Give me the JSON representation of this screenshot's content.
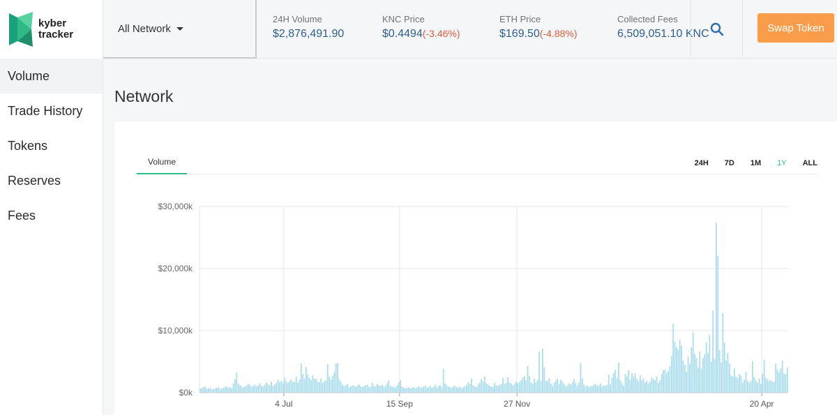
{
  "brand": {
    "line1": "kyber",
    "line2": "tracker",
    "color": "#2eb985"
  },
  "sidebar": {
    "items": [
      {
        "label": "Volume",
        "active": true
      },
      {
        "label": "Trade History"
      },
      {
        "label": "Tokens"
      },
      {
        "label": "Reserves"
      },
      {
        "label": "Fees"
      }
    ]
  },
  "header": {
    "network": "All Network",
    "stats": {
      "volume": {
        "label": "24H Volume",
        "value": "$2,876,491.90"
      },
      "knc": {
        "label": "KNC Price",
        "value": "$0.4494",
        "change": "(-3.46%)"
      },
      "eth": {
        "label": "ETH Price",
        "value": "$169.50",
        "change": "(-4.88%)"
      },
      "fees": {
        "label": "Collected Fees",
        "value": "6,509,051.10 KNC"
      }
    },
    "search_icon": "search-icon",
    "swap_label": "Swap Token"
  },
  "main": {
    "title": "Network",
    "tab": "Volume",
    "ranges": [
      "24H",
      "7D",
      "1M",
      "1Y",
      "ALL"
    ],
    "active_range": "1Y"
  },
  "colors": {
    "accent": "#2eb985",
    "swap": "#f99d4b",
    "bar": "#a9dced",
    "value": "#2e5e8c",
    "negative": "#e05a3a"
  },
  "chart_data": {
    "type": "bar",
    "xlabel": "",
    "ylabel": "",
    "ylim": [
      0,
      30000
    ],
    "y_unit": "$ thousands",
    "yticks": [
      "$0k",
      "$10,000k",
      "$20,000k",
      "$30,000k"
    ],
    "ytick_values": [
      0,
      10000,
      20000,
      30000
    ],
    "xticks": [
      "4 Jul",
      "15 Sep",
      "27 Nov",
      "20 Apr"
    ],
    "xtick_index": [
      51,
      121,
      192,
      340
    ],
    "grid": true,
    "values": [
      700,
      800,
      900,
      1000,
      600,
      700,
      800,
      500,
      600,
      700,
      800,
      900,
      600,
      700,
      800,
      900,
      1000,
      800,
      900,
      700,
      1500,
      2200,
      3200,
      1500,
      1200,
      1000,
      800,
      1000,
      1200,
      1400,
      1300,
      900,
      1100,
      1300,
      1000,
      1200,
      1500,
      1100,
      1000,
      1300,
      1600,
      1400,
      1200,
      1800,
      1100,
      1300,
      1600,
      2100,
      1700,
      1900,
      1500,
      2400,
      1800,
      1600,
      1900,
      2200,
      1700,
      1800,
      2600,
      1600,
      2100,
      4700,
      3000,
      2300,
      4100,
      3000,
      2400,
      2000,
      2800,
      2300,
      2200,
      1800,
      1700,
      2300,
      1600,
      1800,
      2000,
      4600,
      2600,
      2100,
      2700,
      3300,
      4700,
      4800,
      2200,
      1800,
      1300,
      1000,
      1200,
      1400,
      900,
      1000,
      1200,
      1100,
      900,
      1200,
      1300,
      1000,
      900,
      1100,
      1200,
      1300,
      900,
      1000,
      1600,
      1100,
      1000,
      1400,
      1200,
      1100,
      1300,
      1000,
      1100,
      1500,
      2000,
      1100,
      900,
      1000,
      800,
      1200,
      1600,
      2000,
      1000,
      800,
      700,
      800,
      900,
      700,
      800,
      900,
      700,
      800,
      1000,
      900,
      800,
      1000,
      1100,
      800,
      900,
      1100,
      800,
      900,
      1300,
      800,
      1100,
      1200,
      900,
      3800,
      1500,
      1200,
      1000,
      900,
      800,
      1000,
      1100,
      900,
      800,
      1000,
      700,
      900,
      1000,
      1200,
      1700,
      1400,
      2300,
      1200,
      1000,
      900,
      1300,
      1600,
      2200,
      1800,
      2600,
      1500,
      1300,
      1100,
      1000,
      900,
      1500,
      1200,
      1100,
      1300,
      1400,
      2400,
      1400,
      1600,
      2500,
      1700,
      1500,
      1200,
      1400,
      1800,
      1500,
      1700,
      2000,
      2400,
      2700,
      2000,
      4300,
      2700,
      1700,
      1400,
      2300,
      1700,
      2100,
      6600,
      1900,
      7100,
      4100,
      1900,
      1900,
      2300,
      1400,
      1100,
      1600,
      1900,
      2300,
      1400,
      2100,
      1800,
      1400,
      1000,
      1200,
      1500,
      1300,
      1700,
      2200,
      1600,
      1100,
      1600,
      4800,
      2300,
      1300,
      1000,
      1200,
      900,
      1100,
      1000,
      1300,
      1400,
      1100,
      1200,
      1500,
      1000,
      1200,
      1100,
      1300,
      2900,
      1300,
      2400,
      3200,
      3700,
      2300,
      4800,
      2000,
      1600,
      1100,
      3000,
      2600,
      3600,
      2100,
      3200,
      2600,
      3100,
      2200,
      1800,
      2800,
      2000,
      2300,
      1600,
      1900,
      1500,
      1800,
      2500,
      2200,
      2000,
      2600,
      1600,
      2000,
      3000,
      3600,
      3700,
      3200,
      3500,
      4300,
      5900,
      11100,
      8200,
      7300,
      6900,
      8500,
      7600,
      5200,
      4500,
      3400,
      5800,
      4600,
      7300,
      9700,
      6200,
      5600,
      4100,
      6600,
      3900,
      5600,
      6200,
      8100,
      6400,
      9300,
      5000,
      13200,
      5400,
      27400,
      22000,
      6900,
      4900,
      12800,
      8100,
      5200,
      6400,
      4700,
      2800,
      2600,
      3900,
      2600,
      2300,
      3000,
      2700,
      1600,
      2100,
      3300,
      1900,
      1600,
      1900,
      5100,
      2500,
      2000,
      1600,
      2300,
      1400,
      3000,
      5300,
      2400,
      2200,
      1900,
      2000,
      1800,
      1700,
      4700,
      3700,
      3300,
      3900,
      5200,
      3100,
      3000,
      4100
    ]
  }
}
